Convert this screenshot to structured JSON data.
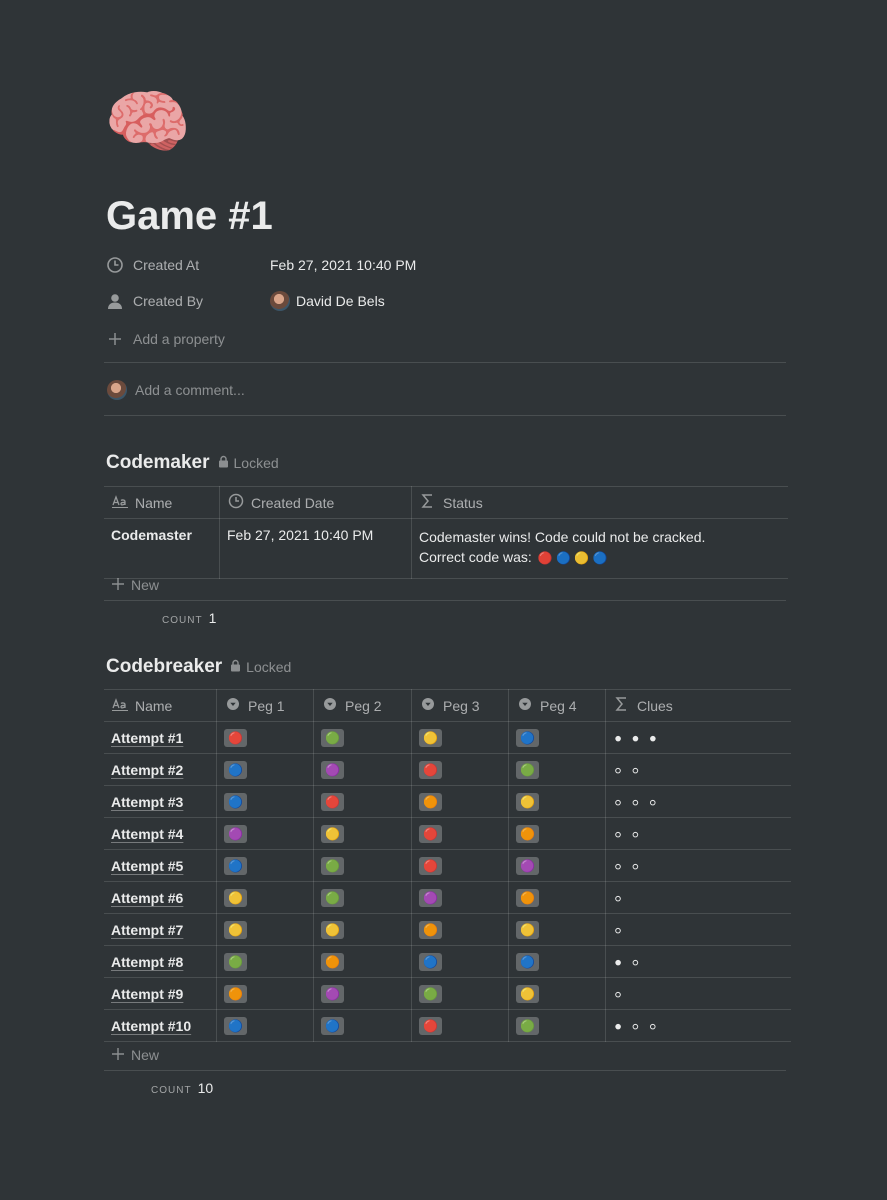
{
  "page": {
    "icon": "🧠",
    "title": "Game #1"
  },
  "properties": [
    {
      "label": "Created At",
      "value": "Feb 27, 2021 10:40 PM"
    },
    {
      "label": "Created By",
      "value": "David De Bels"
    }
  ],
  "add_property": "Add a property",
  "comment_placeholder": "Add a comment...",
  "codemaker": {
    "title": "Codemaker",
    "lock": "Locked",
    "columns": [
      "Name",
      "Created Date",
      "Status"
    ],
    "rows": [
      {
        "name": "Codemaster",
        "created": "Feb 27, 2021 10:40 PM",
        "status": "Codemaster wins! Code could not be cracked.",
        "code_label": "Correct code was:",
        "code": "🔴 🔵 🟡 🔵"
      }
    ],
    "new": "New",
    "count_label": "COUNT",
    "count": 1
  },
  "codebreaker": {
    "title": "Codebreaker",
    "lock": "Locked",
    "columns": [
      "Name",
      "Peg 1",
      "Peg 2",
      "Peg 3",
      "Peg 4",
      "Clues"
    ],
    "rows": [
      [
        "Attempt #1",
        "🔴",
        "🟢",
        "🟡",
        "🔵",
        "⚫ ⚫ ⚫"
      ],
      [
        "Attempt #2",
        "🔵",
        "🟣",
        "🔴",
        "🟢",
        "⚪ ⚪"
      ],
      [
        "Attempt #3",
        "🔵",
        "🔴",
        "🟠",
        "🟡",
        "⚪ ⚪ ⚪"
      ],
      [
        "Attempt #4",
        "🟣",
        "🟡",
        "🔴",
        "🟠",
        "⚪ ⚪"
      ],
      [
        "Attempt #5",
        "🔵",
        "🟢",
        "🔴",
        "🟣",
        "⚪ ⚪"
      ],
      [
        "Attempt #6",
        "🟡",
        "🟢",
        "🟣",
        "🟠",
        "⚪"
      ],
      [
        "Attempt #7",
        "🟡",
        "🟡",
        "🟠",
        "🟡",
        "⚪"
      ],
      [
        "Attempt #8",
        "🟢",
        "🟠",
        "🔵",
        "🔵",
        "⚫ ⚪"
      ],
      [
        "Attempt #9",
        "🟠",
        "🟣",
        "🟢",
        "🟡",
        "⚪"
      ],
      [
        "Attempt #10",
        "🔵",
        "🔵",
        "🔴",
        "🟢",
        "⚫ ⚪ ⚪"
      ]
    ],
    "new": "New",
    "count_label": "COUNT",
    "count": 10
  }
}
